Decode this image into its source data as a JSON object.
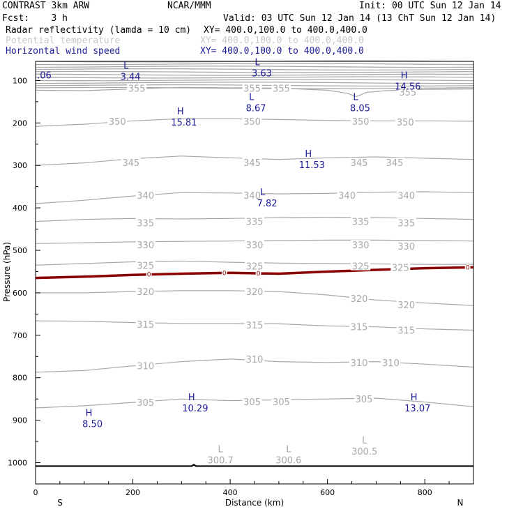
{
  "header": {
    "left1": "CONTRAST  3km ARW",
    "center1": "NCAR/MMM",
    "right1": "Init: 00 UTC Sun 12 Jan 14",
    "left2": "Fcst:    3 h",
    "right2": "Valid: 03 UTC Sun 12 Jan 14 (13 ChT Sun 12 Jan 14)",
    "legend": [
      {
        "name": "Radar reflectivity (lamda = 10 cm)",
        "xy": "XY= 400.0,100.0 to 400.0,400.0",
        "color": "#000000"
      },
      {
        "name": "Potential temperature",
        "xy": "XY= 400.0,100.0 to 400.0,400.0",
        "color": "#c8c8c8"
      },
      {
        "name": "Horizontal wind speed",
        "xy": "XY= 400.0,100.0 to 400.0,400.0",
        "color": "#1a1a99"
      }
    ]
  },
  "chart_data": {
    "type": "contour",
    "xlabel": "Distance (km)",
    "ylabel": "Pressure (hPa)",
    "xlim": [
      0,
      900
    ],
    "ylim": [
      1050,
      55
    ],
    "xticks": [
      0,
      200,
      400,
      600,
      800
    ],
    "yticks": [
      100,
      200,
      300,
      400,
      500,
      600,
      700,
      800,
      900,
      1000
    ],
    "x_end_labels": {
      "left": "S",
      "right": "N"
    },
    "colors": {
      "theta": "#a8a8a8",
      "wind": "#1a1a99",
      "reflectivity": "#8b0000",
      "terrain": "#000000"
    },
    "top_band": {
      "from_hPa": 55,
      "to_hPa": 118,
      "levels": 11
    },
    "theta_contours": [
      {
        "level": 355,
        "points": [
          [
            0,
            123
          ],
          [
            100,
            124
          ],
          [
            200,
            120
          ],
          [
            300,
            116
          ],
          [
            400,
            117
          ],
          [
            500,
            118
          ],
          [
            600,
            123
          ],
          [
            640,
            130
          ],
          [
            660,
            138
          ],
          [
            680,
            128
          ],
          [
            720,
            124
          ],
          [
            800,
            121
          ],
          [
            900,
            120
          ]
        ]
      },
      {
        "level": 350,
        "points": [
          [
            0,
            208
          ],
          [
            100,
            203
          ],
          [
            200,
            195
          ],
          [
            300,
            190
          ],
          [
            400,
            190
          ],
          [
            500,
            192
          ],
          [
            600,
            194
          ],
          [
            700,
            195
          ],
          [
            800,
            195
          ],
          [
            900,
            196
          ]
        ]
      },
      {
        "level": 345,
        "points": [
          [
            0,
            300
          ],
          [
            100,
            294
          ],
          [
            200,
            284
          ],
          [
            300,
            278
          ],
          [
            400,
            282
          ],
          [
            500,
            286
          ],
          [
            600,
            282
          ],
          [
            700,
            280
          ],
          [
            800,
            283
          ],
          [
            900,
            286
          ]
        ]
      },
      {
        "level": 340,
        "points": [
          [
            0,
            390
          ],
          [
            100,
            382
          ],
          [
            200,
            372
          ],
          [
            300,
            364
          ],
          [
            400,
            365
          ],
          [
            500,
            367
          ],
          [
            600,
            366
          ],
          [
            700,
            363
          ],
          [
            800,
            362
          ],
          [
            900,
            364
          ]
        ]
      },
      {
        "level": 335,
        "points": [
          [
            0,
            432
          ],
          [
            100,
            427
          ],
          [
            200,
            425
          ],
          [
            300,
            426
          ],
          [
            400,
            425
          ],
          [
            500,
            423
          ],
          [
            600,
            422
          ],
          [
            700,
            423
          ],
          [
            800,
            425
          ],
          [
            900,
            427
          ]
        ]
      },
      {
        "level": 330,
        "points": [
          [
            0,
            484
          ],
          [
            100,
            482
          ],
          [
            200,
            480
          ],
          [
            300,
            479
          ],
          [
            400,
            478
          ],
          [
            500,
            477
          ],
          [
            600,
            476
          ],
          [
            700,
            476
          ],
          [
            800,
            477
          ],
          [
            900,
            478
          ]
        ]
      },
      {
        "level": 325,
        "points": [
          [
            0,
            535
          ],
          [
            100,
            531
          ],
          [
            200,
            527
          ],
          [
            300,
            525
          ],
          [
            400,
            528
          ],
          [
            500,
            530
          ],
          [
            600,
            531
          ],
          [
            700,
            532
          ],
          [
            800,
            533
          ],
          [
            900,
            533
          ]
        ]
      },
      {
        "level": 320,
        "points": [
          [
            0,
            600
          ],
          [
            100,
            600
          ],
          [
            200,
            597
          ],
          [
            300,
            595
          ],
          [
            400,
            595
          ],
          [
            500,
            597
          ],
          [
            600,
            605
          ],
          [
            700,
            617
          ],
          [
            800,
            624
          ],
          [
            900,
            630
          ]
        ]
      },
      {
        "level": 315,
        "points": [
          [
            0,
            666
          ],
          [
            100,
            667
          ],
          [
            200,
            670
          ],
          [
            300,
            672
          ],
          [
            400,
            672
          ],
          [
            500,
            673
          ],
          [
            600,
            678
          ],
          [
            700,
            680
          ],
          [
            800,
            685
          ],
          [
            900,
            688
          ]
        ]
      },
      {
        "level": 310,
        "points": [
          [
            0,
            787
          ],
          [
            100,
            783
          ],
          [
            200,
            772
          ],
          [
            300,
            762
          ],
          [
            400,
            756
          ],
          [
            500,
            762
          ],
          [
            600,
            764
          ],
          [
            700,
            762
          ],
          [
            800,
            768
          ],
          [
            900,
            775
          ]
        ]
      },
      {
        "level": 305,
        "points": [
          [
            0,
            871
          ],
          [
            100,
            866
          ],
          [
            200,
            858
          ],
          [
            300,
            850
          ],
          [
            400,
            854
          ],
          [
            500,
            852
          ],
          [
            600,
            850
          ],
          [
            700,
            848
          ],
          [
            800,
            857
          ],
          [
            900,
            868
          ]
        ]
      }
    ],
    "contour_labels": [
      {
        "text": "355",
        "x": 208,
        "p": 118
      },
      {
        "text": "355",
        "x": 445,
        "p": 118
      },
      {
        "text": "355",
        "x": 505,
        "p": 118
      },
      {
        "text": "355",
        "x": 765,
        "p": 127
      },
      {
        "text": "350",
        "x": 168,
        "p": 196
      },
      {
        "text": "350",
        "x": 445,
        "p": 196
      },
      {
        "text": "350",
        "x": 668,
        "p": 196
      },
      {
        "text": "350",
        "x": 760,
        "p": 198
      },
      {
        "text": "345",
        "x": 196,
        "p": 293
      },
      {
        "text": "345",
        "x": 445,
        "p": 293
      },
      {
        "text": "345",
        "x": 665,
        "p": 293
      },
      {
        "text": "345",
        "x": 738,
        "p": 293
      },
      {
        "text": "340",
        "x": 226,
        "p": 370
      },
      {
        "text": "340",
        "x": 445,
        "p": 370
      },
      {
        "text": "340",
        "x": 640,
        "p": 370
      },
      {
        "text": "340",
        "x": 762,
        "p": 370
      },
      {
        "text": "335",
        "x": 226,
        "p": 435
      },
      {
        "text": "335",
        "x": 450,
        "p": 432
      },
      {
        "text": "335",
        "x": 668,
        "p": 432
      },
      {
        "text": "335",
        "x": 762,
        "p": 435
      },
      {
        "text": "330",
        "x": 226,
        "p": 487
      },
      {
        "text": "330",
        "x": 450,
        "p": 487
      },
      {
        "text": "330",
        "x": 668,
        "p": 487
      },
      {
        "text": "330",
        "x": 762,
        "p": 490
      },
      {
        "text": "325",
        "x": 226,
        "p": 535
      },
      {
        "text": "325",
        "x": 450,
        "p": 537
      },
      {
        "text": "325",
        "x": 668,
        "p": 537
      },
      {
        "text": "325",
        "x": 750,
        "p": 540
      },
      {
        "text": "320",
        "x": 226,
        "p": 597
      },
      {
        "text": "320",
        "x": 450,
        "p": 597
      },
      {
        "text": "320",
        "x": 665,
        "p": 613
      },
      {
        "text": "320",
        "x": 762,
        "p": 628
      },
      {
        "text": "315",
        "x": 226,
        "p": 674
      },
      {
        "text": "315",
        "x": 450,
        "p": 676
      },
      {
        "text": "315",
        "x": 665,
        "p": 680
      },
      {
        "text": "315",
        "x": 762,
        "p": 688
      },
      {
        "text": "310",
        "x": 226,
        "p": 772
      },
      {
        "text": "310",
        "x": 450,
        "p": 756
      },
      {
        "text": "310",
        "x": 665,
        "p": 764
      },
      {
        "text": "310",
        "x": 730,
        "p": 764
      },
      {
        "text": "305",
        "x": 226,
        "p": 858
      },
      {
        "text": "305",
        "x": 445,
        "p": 856
      },
      {
        "text": "305",
        "x": 505,
        "p": 856
      },
      {
        "text": "305",
        "x": 675,
        "p": 850
      }
    ],
    "reflectivity_zero_line": {
      "level": 0,
      "points": [
        [
          0,
          565
        ],
        [
          100,
          562
        ],
        [
          200,
          558
        ],
        [
          300,
          555
        ],
        [
          400,
          553
        ],
        [
          500,
          555
        ],
        [
          600,
          550
        ],
        [
          700,
          546
        ],
        [
          800,
          542
        ],
        [
          900,
          540
        ]
      ],
      "labels": [
        {
          "text": "0",
          "x": 233
        },
        {
          "text": "0",
          "x": 388
        },
        {
          "text": "0",
          "x": 458
        },
        {
          "text": "0",
          "x": 888
        }
      ]
    },
    "wind_extrema": [
      {
        "kind": "L",
        "value": "3.44",
        "x": 195,
        "p": 72
      },
      {
        "kind": "L",
        "value": "3.63",
        "x": 465,
        "p": 64
      },
      {
        "kind": "H",
        "value": "14.56",
        "x": 765,
        "p": 95
      },
      {
        "kind": "L",
        "value": "8.67",
        "x": 453,
        "p": 146
      },
      {
        "kind": "L",
        "value": "8.05",
        "x": 667,
        "p": 146
      },
      {
        "kind": "H",
        "value": "15.81",
        "x": 305,
        "p": 180
      },
      {
        "kind": "H",
        "value": "11.53",
        "x": 568,
        "p": 280
      },
      {
        "kind": "L",
        "value": "7.82",
        "x": 476,
        "p": 370
      },
      {
        "kind": "H",
        "value": "10.29",
        "x": 328,
        "p": 853
      },
      {
        "kind": "H",
        "value": "13.07",
        "x": 785,
        "p": 853
      },
      {
        "kind": "H",
        "value": "8.50",
        "x": 117,
        "p": 890
      }
    ],
    "edge_value": {
      "text": ".06",
      "x": 3,
      "p": 87
    },
    "theta_extrema": [
      {
        "kind": "L",
        "value": "300.7",
        "x": 380,
        "p": 975
      },
      {
        "kind": "L",
        "value": "300.6",
        "x": 520,
        "p": 975
      },
      {
        "kind": "L",
        "value": "300.5",
        "x": 676,
        "p": 955
      }
    ],
    "terrain_line_p": 1008
  }
}
